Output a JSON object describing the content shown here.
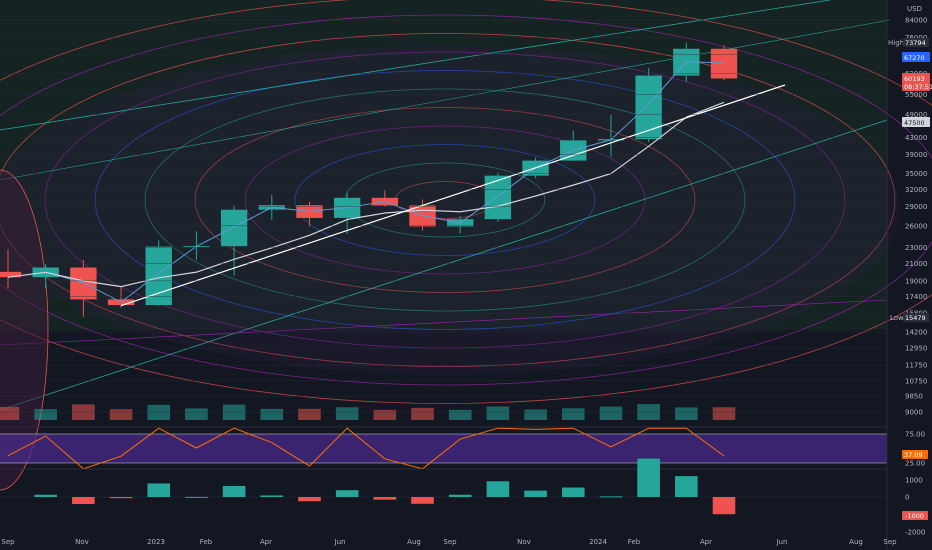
{
  "currency": "USD",
  "price_axis": {
    "ticks": [
      "84000",
      "76000",
      "69000",
      "62000",
      "55000",
      "49000",
      "43000",
      "39000",
      "35000",
      "32000",
      "29000",
      "26000",
      "23000",
      "21000",
      "19000",
      "17400",
      "15800",
      "14200",
      "12950",
      "11750",
      "10750",
      "9850",
      "9000"
    ],
    "high_label": "High",
    "high_value": "73794",
    "low_label": "Low",
    "low_value": "15479",
    "current_value": "67270",
    "current_price": "60193",
    "countdown": "08:37:51",
    "ma_value": "47500"
  },
  "rsi_axis": {
    "ticks": [
      "75.00",
      "25.00"
    ],
    "value": "37.09"
  },
  "macd_axis": {
    "ticks": [
      "1000",
      "0",
      "-1000",
      "-2000"
    ],
    "value": "-1000"
  },
  "time_axis": [
    "Sep",
    "Nov",
    "2023",
    "Feb",
    "Apr",
    "Jun",
    "Aug",
    "Sep",
    "Nov",
    "2024",
    "Feb",
    "Apr",
    "Jun",
    "Aug",
    "Sep"
  ],
  "colors": {
    "up": "#26a69a",
    "down": "#ef5350",
    "background": "#131722",
    "rsi_band": "#4a2a8a",
    "rsi_line": "#ff6d00",
    "ma_short": "#5b9bd5",
    "ma_long": "#d1d4dc",
    "trendline": "#ffffff"
  },
  "chart_data": {
    "type": "candlestick",
    "symbol_quote": "USD",
    "price_series": {
      "name": "",
      "dates": [
        "2022-09",
        "2022-10",
        "2022-11",
        "2022-12",
        "2023-01",
        "2023-02",
        "2023-03",
        "2023-04",
        "2023-05",
        "2023-06",
        "2023-07",
        "2023-08",
        "2023-09",
        "2023-10",
        "2023-11",
        "2023-12",
        "2024-01",
        "2024-02",
        "2024-03",
        "2024-04"
      ],
      "open": [
        20000,
        19400,
        20500,
        17100,
        16550,
        23100,
        23150,
        28500,
        29250,
        27200,
        30500,
        29200,
        25900,
        27000,
        34600,
        37700,
        42300,
        42600,
        61200,
        71300
      ],
      "high": [
        22700,
        20900,
        21400,
        18400,
        23950,
        25200,
        29200,
        31000,
        29800,
        31400,
        31800,
        30200,
        27500,
        35200,
        38400,
        44700,
        48900,
        63800,
        73794,
        72700
      ],
      "low": [
        18200,
        18200,
        15479,
        16300,
        16500,
        21400,
        19600,
        26900,
        25900,
        24800,
        29000,
        25300,
        24900,
        26600,
        34100,
        37600,
        38500,
        41900,
        59000,
        59600
      ],
      "close": [
        19400,
        20500,
        17100,
        16550,
        23100,
        23150,
        28500,
        29250,
        27200,
        30500,
        29200,
        25900,
        27000,
        34600,
        37700,
        42300,
        42600,
        61200,
        71300,
        60193
      ]
    },
    "high": 73794,
    "low": 15479,
    "last_price": 60193,
    "y_scale": "log",
    "ylim": [
      8500,
      90000
    ],
    "rsi": {
      "levels": [
        75,
        25
      ],
      "last": 37.09
    },
    "macd": {
      "levels": [
        1000,
        0,
        -1000,
        -2000
      ],
      "last": -1000
    },
    "grid": true
  }
}
